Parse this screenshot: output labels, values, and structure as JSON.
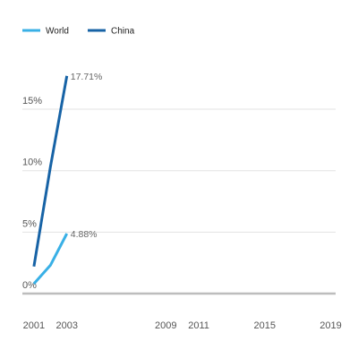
{
  "chart_data": {
    "type": "line",
    "x_ticks": [
      2001,
      2003,
      2009,
      2011,
      2015,
      2019
    ],
    "x_range": [
      2000.3,
      2019.3
    ],
    "y_ticks": [
      {
        "value": 0,
        "label": "0%"
      },
      {
        "value": 5,
        "label": "5%"
      },
      {
        "value": 10,
        "label": "10%"
      },
      {
        "value": 15,
        "label": "15%"
      }
    ],
    "ylim": [
      0,
      18.5
    ],
    "grid": true,
    "legend_position": "top-left",
    "series": [
      {
        "name": "World",
        "color": "#39b0e6",
        "x": [
          2001,
          2002,
          2003
        ],
        "values": [
          0.8,
          2.3,
          4.88
        ],
        "end_label": "4.88%"
      },
      {
        "name": "China",
        "color": "#1763a6",
        "x": [
          2001,
          2002,
          2003
        ],
        "values": [
          2.2,
          10.3,
          17.71
        ],
        "end_label": "17.71%"
      }
    ]
  }
}
